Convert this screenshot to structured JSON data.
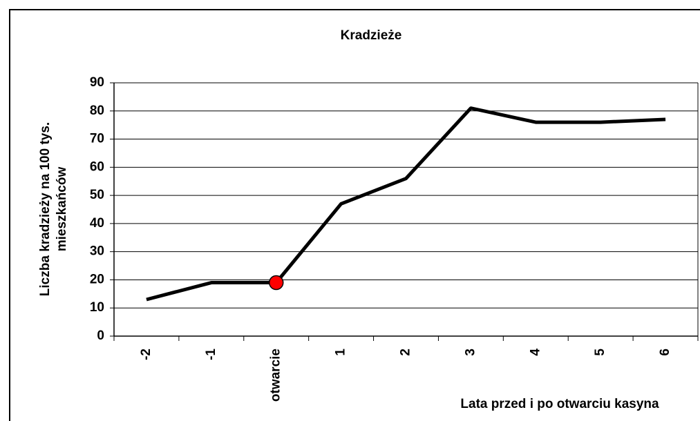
{
  "chart_data": {
    "type": "line",
    "title": "Kradzieże",
    "ylabel_lines": [
      "Liczba kradzieży na 100 tys.",
      "mieszkańców"
    ],
    "xlabel": "Lata przed i po otwarciu kasyna",
    "categories": [
      "-2",
      "-1",
      "otwarcie",
      "1",
      "2",
      "3",
      "4",
      "5",
      "6"
    ],
    "series": [
      {
        "name": "Kradzieże",
        "color": "#000000",
        "values": [
          13,
          19,
          19,
          47,
          56,
          81,
          76,
          76,
          77
        ]
      }
    ],
    "highlight": {
      "index": 2,
      "color": "#ff0000"
    },
    "ylim": [
      0,
      90
    ],
    "yticks": [
      0,
      10,
      20,
      30,
      40,
      50,
      60,
      70,
      80,
      90
    ],
    "grid": true
  }
}
